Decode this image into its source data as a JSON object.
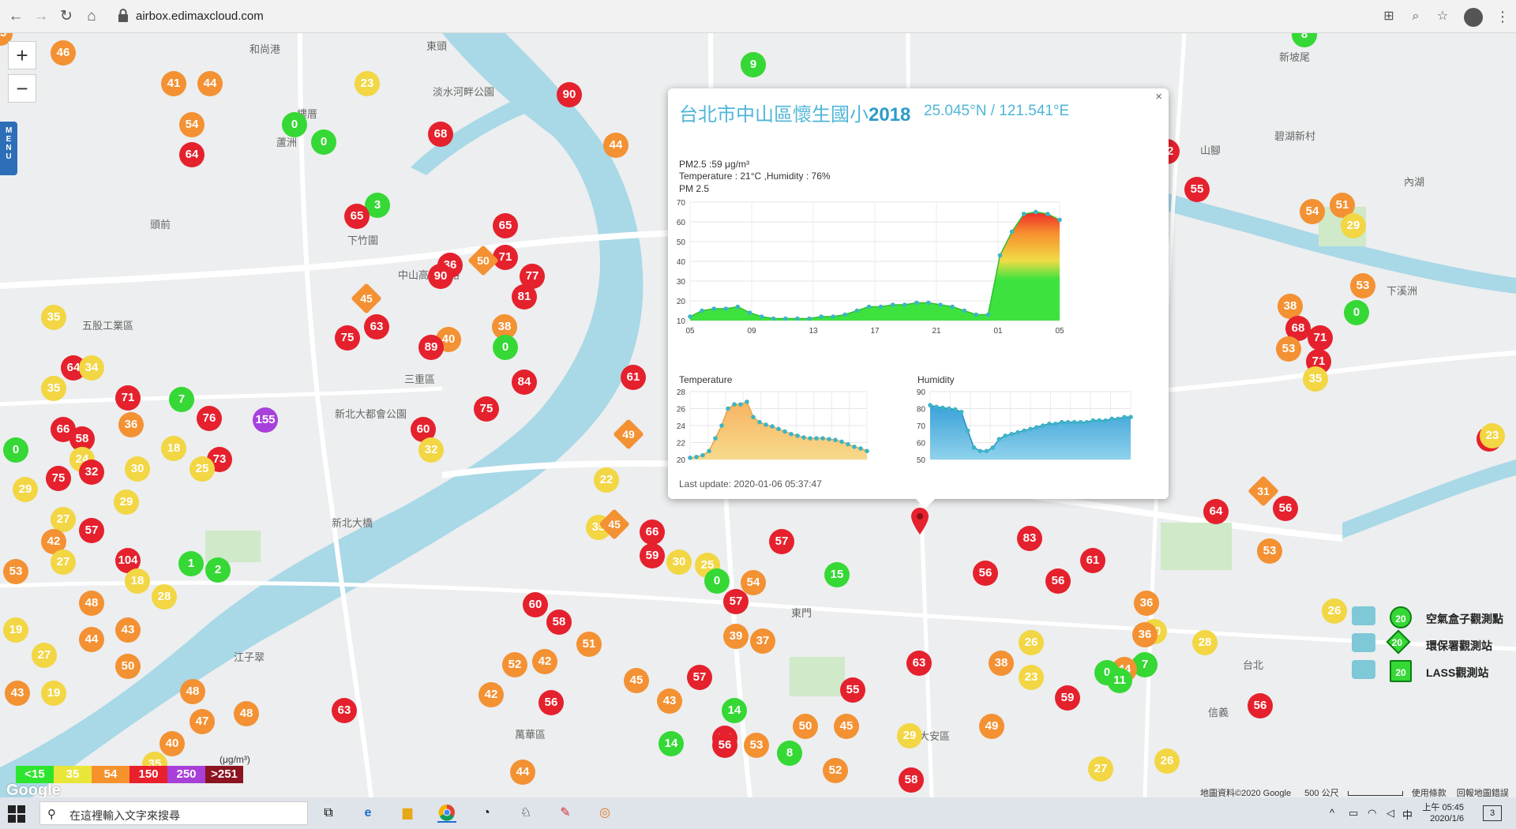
{
  "browser": {
    "url": "airbox.edimaxcloud.com"
  },
  "map": {
    "zoom_in": "+",
    "zoom_out": "−",
    "menu_tab": "MENU",
    "place_labels": [
      {
        "id": "heping",
        "text": "和尚港"
      },
      {
        "id": "dongtou",
        "text": "東頭"
      },
      {
        "id": "danshui",
        "text": "淡水河畔公園"
      },
      {
        "id": "louti",
        "text": "樓厝"
      },
      {
        "id": "luzhou",
        "text": "蘆洲"
      },
      {
        "id": "wugu",
        "text": "五股工業區"
      },
      {
        "id": "sanchong",
        "text": "三重區"
      },
      {
        "id": "xinzhuang",
        "text": "新北大都會公園"
      },
      {
        "id": "taipei",
        "text": "台北"
      },
      {
        "id": "daan",
        "text": "大安區"
      },
      {
        "id": "xinyi",
        "text": "台北"
      },
      {
        "id": "xinyidist",
        "text": "信義"
      },
      {
        "id": "ximen",
        "text": "萬華區"
      },
      {
        "id": "jiangtsui",
        "text": "江子翠"
      },
      {
        "id": "dongmen",
        "text": "東門"
      },
      {
        "id": "neihu",
        "text": "內湖"
      },
      {
        "id": "shilin",
        "text": "碧湖新村"
      },
      {
        "id": "shanshan",
        "text": "山腳"
      },
      {
        "id": "xinpo",
        "text": "新坡尾"
      },
      {
        "id": "zhongshan",
        "text": "中山高速公路"
      },
      {
        "id": "renai",
        "text": "下竹圍"
      },
      {
        "id": "xiliuzi",
        "text": "下溪洲"
      },
      {
        "id": "tongxin",
        "text": "頭前"
      },
      {
        "id": "banqiao",
        "text": "新北大橋"
      }
    ],
    "markers": [
      {
        "v": "46",
        "c": "orange"
      },
      {
        "v": "41",
        "c": "orange"
      },
      {
        "v": "44",
        "c": "orange"
      },
      {
        "v": "23",
        "c": "yellow"
      },
      {
        "v": "45",
        "c": "orange"
      },
      {
        "v": "90",
        "c": "red"
      },
      {
        "v": "0",
        "c": "green"
      },
      {
        "v": "0",
        "c": "green"
      },
      {
        "v": "54",
        "c": "orange"
      },
      {
        "v": "64",
        "c": "red"
      },
      {
        "v": "68",
        "c": "red"
      },
      {
        "v": "44",
        "c": "orange"
      },
      {
        "v": "3",
        "c": "green"
      },
      {
        "v": "65",
        "c": "red"
      },
      {
        "v": "65",
        "c": "red"
      },
      {
        "v": "36",
        "c": "red"
      },
      {
        "v": "90",
        "c": "red"
      },
      {
        "v": "71",
        "c": "red"
      },
      {
        "v": "77",
        "c": "red"
      },
      {
        "v": "81",
        "c": "red"
      },
      {
        "v": "35",
        "c": "yellow"
      },
      {
        "v": "63",
        "c": "red"
      },
      {
        "v": "75",
        "c": "red"
      },
      {
        "v": "40",
        "c": "orange"
      },
      {
        "v": "89",
        "c": "red"
      },
      {
        "v": "38",
        "c": "orange"
      },
      {
        "v": "0",
        "c": "green"
      },
      {
        "v": "64",
        "c": "red"
      },
      {
        "v": "34",
        "c": "yellow"
      },
      {
        "v": "35",
        "c": "yellow"
      },
      {
        "v": "71",
        "c": "red"
      },
      {
        "v": "7",
        "c": "green"
      },
      {
        "v": "76",
        "c": "red"
      },
      {
        "v": "155",
        "c": "purple"
      },
      {
        "v": "66",
        "c": "red"
      },
      {
        "v": "36",
        "c": "orange"
      },
      {
        "v": "58",
        "c": "red"
      },
      {
        "v": "0",
        "c": "green"
      },
      {
        "v": "24",
        "c": "yellow"
      },
      {
        "v": "75",
        "c": "red"
      },
      {
        "v": "32",
        "c": "red"
      },
      {
        "v": "18",
        "c": "yellow"
      },
      {
        "v": "73",
        "c": "red"
      },
      {
        "v": "30",
        "c": "yellow"
      },
      {
        "v": "25",
        "c": "yellow"
      },
      {
        "v": "29",
        "c": "yellow"
      },
      {
        "v": "27",
        "c": "yellow"
      },
      {
        "v": "42",
        "c": "orange"
      },
      {
        "v": "57",
        "c": "red"
      },
      {
        "v": "29",
        "c": "yellow"
      },
      {
        "v": "27",
        "c": "yellow"
      },
      {
        "v": "104",
        "c": "red"
      },
      {
        "v": "1",
        "c": "green"
      },
      {
        "v": "2",
        "c": "green"
      },
      {
        "v": "53",
        "c": "orange"
      },
      {
        "v": "18",
        "c": "yellow"
      },
      {
        "v": "28",
        "c": "yellow"
      },
      {
        "v": "48",
        "c": "orange"
      },
      {
        "v": "19",
        "c": "yellow"
      },
      {
        "v": "44",
        "c": "orange"
      },
      {
        "v": "43",
        "c": "orange"
      },
      {
        "v": "27",
        "c": "yellow"
      },
      {
        "v": "50",
        "c": "orange"
      },
      {
        "v": "43",
        "c": "orange"
      },
      {
        "v": "19",
        "c": "yellow"
      },
      {
        "v": "48",
        "c": "orange"
      },
      {
        "v": "47",
        "c": "orange"
      },
      {
        "v": "48",
        "c": "orange"
      },
      {
        "v": "40",
        "c": "orange"
      },
      {
        "v": "35",
        "c": "yellow"
      },
      {
        "v": "63",
        "c": "red"
      },
      {
        "v": "84",
        "c": "red"
      },
      {
        "v": "61",
        "c": "red"
      },
      {
        "v": "60",
        "c": "red"
      },
      {
        "v": "32",
        "c": "yellow"
      },
      {
        "v": "75",
        "c": "red"
      },
      {
        "v": "22",
        "c": "yellow"
      },
      {
        "v": "60",
        "c": "red"
      },
      {
        "v": "58",
        "c": "red"
      },
      {
        "v": "51",
        "c": "orange"
      },
      {
        "v": "52",
        "c": "orange"
      },
      {
        "v": "42",
        "c": "orange"
      },
      {
        "v": "42",
        "c": "orange"
      },
      {
        "v": "45",
        "c": "orange"
      },
      {
        "v": "56",
        "c": "red"
      },
      {
        "v": "44",
        "c": "orange"
      },
      {
        "v": "35",
        "c": "yellow"
      },
      {
        "v": "66",
        "c": "red"
      },
      {
        "v": "59",
        "c": "red"
      },
      {
        "v": "30",
        "c": "yellow"
      },
      {
        "v": "25",
        "c": "yellow"
      },
      {
        "v": "0",
        "c": "green"
      },
      {
        "v": "54",
        "c": "orange"
      },
      {
        "v": "57",
        "c": "red"
      },
      {
        "v": "39",
        "c": "orange"
      },
      {
        "v": "37",
        "c": "orange"
      },
      {
        "v": "57",
        "c": "red"
      },
      {
        "v": "43",
        "c": "orange"
      },
      {
        "v": "14",
        "c": "green"
      },
      {
        "v": "55",
        "c": "red"
      },
      {
        "v": "56",
        "c": "red"
      },
      {
        "v": "53",
        "c": "orange"
      },
      {
        "v": "14",
        "c": "green"
      },
      {
        "v": "8",
        "c": "green"
      },
      {
        "v": "50",
        "c": "orange"
      },
      {
        "v": "45",
        "c": "orange"
      },
      {
        "v": "57",
        "c": "red"
      },
      {
        "v": "15",
        "c": "green"
      },
      {
        "v": "55",
        "c": "red"
      },
      {
        "v": "63",
        "c": "red"
      },
      {
        "v": "49",
        "c": "orange"
      },
      {
        "v": "29",
        "c": "yellow"
      },
      {
        "v": "52",
        "c": "orange"
      },
      {
        "v": "58",
        "c": "red"
      },
      {
        "v": "56",
        "c": "red"
      },
      {
        "v": "83",
        "c": "red"
      },
      {
        "v": "56",
        "c": "red"
      },
      {
        "v": "26",
        "c": "yellow"
      },
      {
        "v": "38",
        "c": "orange"
      },
      {
        "v": "23",
        "c": "yellow"
      },
      {
        "v": "59",
        "c": "red"
      },
      {
        "v": "61",
        "c": "red"
      },
      {
        "v": "36",
        "c": "orange"
      },
      {
        "v": "30",
        "c": "yellow"
      },
      {
        "v": "36",
        "c": "orange"
      },
      {
        "v": "7",
        "c": "green"
      },
      {
        "v": "44",
        "c": "orange"
      },
      {
        "v": "0",
        "c": "green"
      },
      {
        "v": "11",
        "c": "green"
      },
      {
        "v": "27",
        "c": "yellow"
      },
      {
        "v": "26",
        "c": "yellow"
      },
      {
        "v": "26",
        "c": "yellow"
      },
      {
        "v": "28",
        "c": "yellow"
      },
      {
        "v": "64",
        "c": "red"
      },
      {
        "v": "56",
        "c": "red"
      },
      {
        "v": "53",
        "c": "orange"
      },
      {
        "v": "59",
        "c": "red"
      },
      {
        "v": "56",
        "c": "red"
      },
      {
        "v": "62",
        "c": "red"
      },
      {
        "v": "55",
        "c": "red"
      },
      {
        "v": "54",
        "c": "orange"
      },
      {
        "v": "51",
        "c": "orange"
      },
      {
        "v": "29",
        "c": "yellow"
      },
      {
        "v": "53",
        "c": "orange"
      },
      {
        "v": "0",
        "c": "green"
      },
      {
        "v": "38",
        "c": "orange"
      },
      {
        "v": "68",
        "c": "red"
      },
      {
        "v": "53",
        "c": "orange"
      },
      {
        "v": "71",
        "c": "red"
      },
      {
        "v": "71",
        "c": "red"
      },
      {
        "v": "35",
        "c": "yellow"
      },
      {
        "v": "23",
        "c": "yellow"
      },
      {
        "v": "8",
        "c": "green"
      },
      {
        "v": "9",
        "c": "green"
      },
      {
        "v": "15",
        "c": "green"
      },
      {
        "v": "63",
        "c": "red"
      },
      {
        "v": "51",
        "c": "orange"
      },
      {
        "v": "21",
        "c": "yellow"
      },
      {
        "v": "45",
        "c": "orange"
      }
    ],
    "diamonds": [
      {
        "v": "50",
        "c": "orange"
      },
      {
        "v": "45",
        "c": "orange"
      },
      {
        "v": "45",
        "c": "orange"
      },
      {
        "v": "31",
        "c": "orange"
      },
      {
        "v": "49",
        "c": "orange"
      }
    ]
  },
  "popup": {
    "close": "×",
    "title_prefix": "台北市中山區懷生國小",
    "title_num": "2018",
    "coords": "25.045°N / 121.541°E",
    "pm_text": "PM2.5 :59 μg/m³",
    "temp_hum_text": "Temperature : 21°C ,Humidity : 76%",
    "chart_pm_title": "PM 2.5",
    "chart_temp_title": "Temperature",
    "chart_hum_title": "Humidity",
    "last_update": "Last update: 2020-01-06 05:37:47"
  },
  "chart_data": [
    {
      "type": "area",
      "title": "PM 2.5",
      "x_ticks": [
        "05",
        "09",
        "13",
        "17",
        "21",
        "01",
        "05"
      ],
      "ylim": [
        10,
        70
      ],
      "y_ticks": [
        10,
        20,
        30,
        40,
        50,
        60,
        70
      ],
      "values": [
        12,
        15,
        16,
        16,
        17,
        14,
        12,
        11,
        11,
        11,
        11,
        12,
        12,
        13,
        15,
        17,
        17,
        18,
        18,
        19,
        19,
        18,
        17,
        15,
        13,
        13,
        43,
        55,
        64,
        65,
        64,
        61
      ]
    },
    {
      "type": "area",
      "title": "Temperature",
      "ylim": [
        20,
        28
      ],
      "y_ticks": [
        20,
        22,
        24,
        26,
        28
      ],
      "values": [
        20.2,
        20.3,
        20.5,
        21,
        22.5,
        24,
        26,
        26.5,
        26.5,
        26.8,
        25,
        24.4,
        24.1,
        23.9,
        23.6,
        23.3,
        23,
        22.8,
        22.6,
        22.5,
        22.5,
        22.5,
        22.4,
        22.3,
        22.1,
        21.8,
        21.5,
        21.3,
        21
      ]
    },
    {
      "type": "area",
      "title": "Humidity",
      "ylim": [
        50,
        90
      ],
      "y_ticks": [
        50,
        60,
        70,
        80,
        90
      ],
      "values": [
        82,
        81,
        80.5,
        80,
        79.5,
        78,
        67,
        57,
        55,
        55,
        57,
        62,
        64,
        65,
        66,
        67,
        68,
        69,
        70,
        71,
        71,
        72,
        72,
        72,
        72,
        72,
        73,
        73,
        73,
        74,
        74,
        75,
        75
      ]
    }
  ],
  "legend": {
    "unit": "(μg/m³)",
    "items": [
      {
        "label": "<15",
        "color": "#2ee52e"
      },
      {
        "label": "35",
        "color": "#e9e63a"
      },
      {
        "label": "54",
        "color": "#f6922c"
      },
      {
        "label": "150",
        "color": "#e8202c"
      },
      {
        "label": "250",
        "color": "#a73fd8"
      },
      {
        "label": ">251",
        "color": "#8b1420"
      }
    ]
  },
  "station_legend": [
    {
      "value": "20",
      "label": "空氣盒子觀測點"
    },
    {
      "value": "20",
      "label": "環保署觀測站"
    },
    {
      "value": "20",
      "label": "LASS觀測站"
    }
  ],
  "google_logo": "Google",
  "map_footer": {
    "copyright": "地圖資料©2020 Google",
    "scale": "500 公尺",
    "terms": "使用條款",
    "report": "回報地圖錯誤"
  },
  "taskbar": {
    "search_placeholder": "在這裡輸入文字來搜尋",
    "time": "上午 05:45",
    "date": "2020/1/6",
    "ime": "中",
    "notif_count": "3"
  },
  "colors": {
    "green": "#35d835",
    "yellow": "#f2d644",
    "orange": "#f39133",
    "red": "#e5212d",
    "purple": "#a642db",
    "accent": "#4fb6d8"
  }
}
